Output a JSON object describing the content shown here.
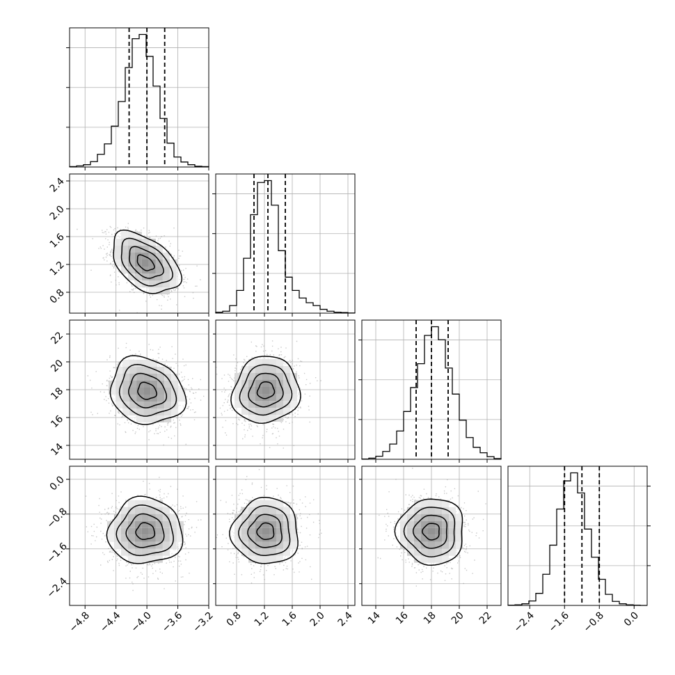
{
  "chart_data": {
    "type": "corner",
    "description_note": "",
    "grid": true,
    "contour_levels": 4,
    "parameters": [
      {
        "range": [
          -5.0,
          -3.2
        ],
        "ticks": [
          -4.8,
          -4.4,
          -4.0,
          -3.6,
          -3.2
        ],
        "tick_labels": [
          "−4.8",
          "−4.4",
          "−4.0",
          "−3.6",
          "−3.2"
        ],
        "quantiles": [
          -4.23,
          -4.0,
          -3.77
        ],
        "hist_edges_start": -5.0,
        "hist_bin_width": 0.09,
        "hist_counts": [
          1,
          3,
          6,
          14,
          33,
          60,
          106,
          170,
          258,
          333,
          344,
          287,
          210,
          126,
          62,
          26,
          13,
          6,
          2,
          1
        ]
      },
      {
        "range": [
          0.5,
          2.5
        ],
        "ticks": [
          0.8,
          1.2,
          1.6,
          2.0,
          2.4
        ],
        "tick_labels": [
          "0.8",
          "1.2",
          "1.6",
          "2.0",
          "2.4"
        ],
        "quantiles": [
          1.05,
          1.25,
          1.5
        ],
        "hist_edges_start": 0.5,
        "hist_bin_width": 0.1,
        "hist_counts": [
          5,
          10,
          40,
          120,
          290,
          520,
          690,
          700,
          570,
          330,
          190,
          120,
          80,
          55,
          40,
          20,
          10,
          5,
          3,
          1
        ]
      },
      {
        "range": [
          13.0,
          23.0
        ],
        "ticks": [
          14,
          16,
          18,
          20,
          22
        ],
        "tick_labels": [
          "14",
          "16",
          "18",
          "20",
          "22"
        ],
        "quantiles": [
          16.9,
          18.0,
          19.2
        ],
        "hist_edges_start": 13.0,
        "hist_bin_width": 0.5,
        "hist_counts": [
          1,
          5,
          14,
          36,
          70,
          130,
          220,
          330,
          440,
          570,
          610,
          550,
          420,
          300,
          180,
          100,
          55,
          30,
          12,
          3
        ]
      },
      {
        "range": [
          -2.9,
          0.3
        ],
        "ticks": [
          -2.4,
          -1.6,
          -0.8,
          0.0
        ],
        "tick_labels": [
          "−2.4",
          "−1.6",
          "−0.8",
          "0.0"
        ],
        "quantiles": [
          -1.6,
          -1.2,
          -0.8
        ],
        "hist_edges_start": -2.9,
        "hist_bin_width": 0.16,
        "hist_counts": [
          1,
          3,
          8,
          22,
          60,
          155,
          300,
          480,
          620,
          660,
          560,
          380,
          240,
          130,
          55,
          20,
          8,
          3,
          1,
          0
        ]
      }
    ],
    "pairs": [
      {
        "x": 0,
        "y": 1,
        "center": [
          -4.02,
          1.22
        ],
        "spread": [
          0.22,
          0.22
        ],
        "rho": -0.45
      },
      {
        "x": 0,
        "y": 2,
        "center": [
          -4.0,
          17.9
        ],
        "spread": [
          0.24,
          1.2
        ],
        "rho": -0.15
      },
      {
        "x": 1,
        "y": 2,
        "center": [
          1.22,
          17.95
        ],
        "spread": [
          0.24,
          1.2
        ],
        "rho": 0.08
      },
      {
        "x": 0,
        "y": 3,
        "center": [
          -4.02,
          -1.2
        ],
        "spread": [
          0.24,
          0.38
        ],
        "rho": 0.0
      },
      {
        "x": 1,
        "y": 3,
        "center": [
          1.22,
          -1.2
        ],
        "spread": [
          0.24,
          0.38
        ],
        "rho": 0.0
      },
      {
        "x": 2,
        "y": 3,
        "center": [
          18.0,
          -1.2
        ],
        "spread": [
          1.2,
          0.38
        ],
        "rho": 0.0
      }
    ]
  }
}
